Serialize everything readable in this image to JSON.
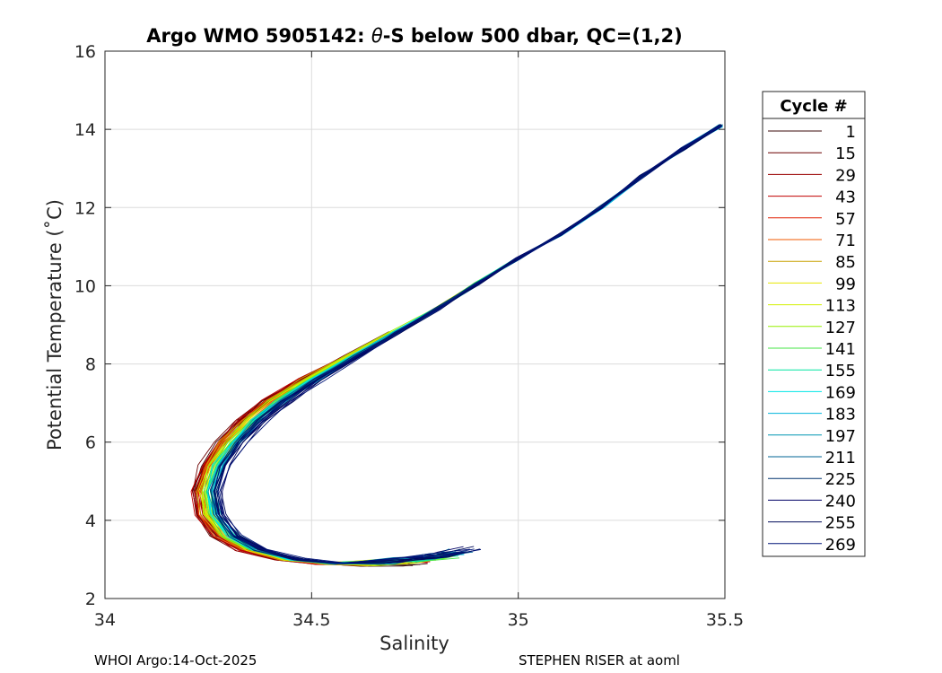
{
  "chart_data": {
    "type": "line",
    "title_prefix": "Argo WMO 5905142: ",
    "title_theta": "θ",
    "title_suffix": "-S below 500 dbar,  QC=(1,2)",
    "xlabel": "Salinity",
    "ylabel": "Potential Temperature (˚C)",
    "xlim": [
      34,
      35.5
    ],
    "ylim": [
      2,
      16
    ],
    "xticks": [
      34,
      34.5,
      35,
      35.5
    ],
    "xtick_labels": [
      "34",
      "34.5",
      "35",
      "35.5"
    ],
    "yticks": [
      2,
      4,
      6,
      8,
      10,
      12,
      14,
      16
    ],
    "ytick_labels": [
      "2",
      "4",
      "6",
      "8",
      "10",
      "12",
      "14",
      "16"
    ],
    "grid": true,
    "legend": {
      "title": "Cycle #",
      "placement": "outside-right",
      "entries": [
        {
          "label": "1",
          "color": "#3b0a0a"
        },
        {
          "label": "15",
          "color": "#6b0000"
        },
        {
          "label": "29",
          "color": "#9a0000"
        },
        {
          "label": "43",
          "color": "#c00000"
        },
        {
          "label": "57",
          "color": "#e01e00"
        },
        {
          "label": "71",
          "color": "#f05a00"
        },
        {
          "label": "85",
          "color": "#c8a000"
        },
        {
          "label": "99",
          "color": "#e6e600"
        },
        {
          "label": "113",
          "color": "#d2f000"
        },
        {
          "label": "127",
          "color": "#96f000"
        },
        {
          "label": "141",
          "color": "#46e646"
        },
        {
          "label": "155",
          "color": "#00e6a0"
        },
        {
          "label": "169",
          "color": "#00e6e6"
        },
        {
          "label": "183",
          "color": "#00b4dc"
        },
        {
          "label": "197",
          "color": "#0096b4"
        },
        {
          "label": "211",
          "color": "#006496"
        },
        {
          "label": "225",
          "color": "#00326e"
        },
        {
          "label": "240",
          "color": "#000064"
        },
        {
          "label": "255",
          "color": "#000a5a"
        },
        {
          "label": "269",
          "color": "#001478"
        }
      ]
    },
    "mean_profile": {
      "salinity": [
        35.49,
        35.4,
        35.3,
        35.2,
        35.1,
        35.0,
        34.9,
        34.8,
        34.7,
        34.6,
        34.5,
        34.42,
        34.36,
        34.31,
        34.27,
        34.25,
        34.26,
        34.3,
        34.36,
        34.45,
        34.55,
        34.65,
        34.72,
        34.78
      ],
      "theta": [
        14.1,
        13.5,
        12.8,
        12.0,
        11.3,
        10.7,
        10.05,
        9.4,
        8.8,
        8.2,
        7.6,
        7.05,
        6.55,
        6.0,
        5.4,
        4.75,
        4.15,
        3.6,
        3.25,
        3.0,
        2.9,
        2.87,
        2.88,
        2.92
      ]
    }
  },
  "footer": {
    "left": "WHOI Argo:14-Oct-2025",
    "right": "STEPHEN RISER at aoml"
  }
}
